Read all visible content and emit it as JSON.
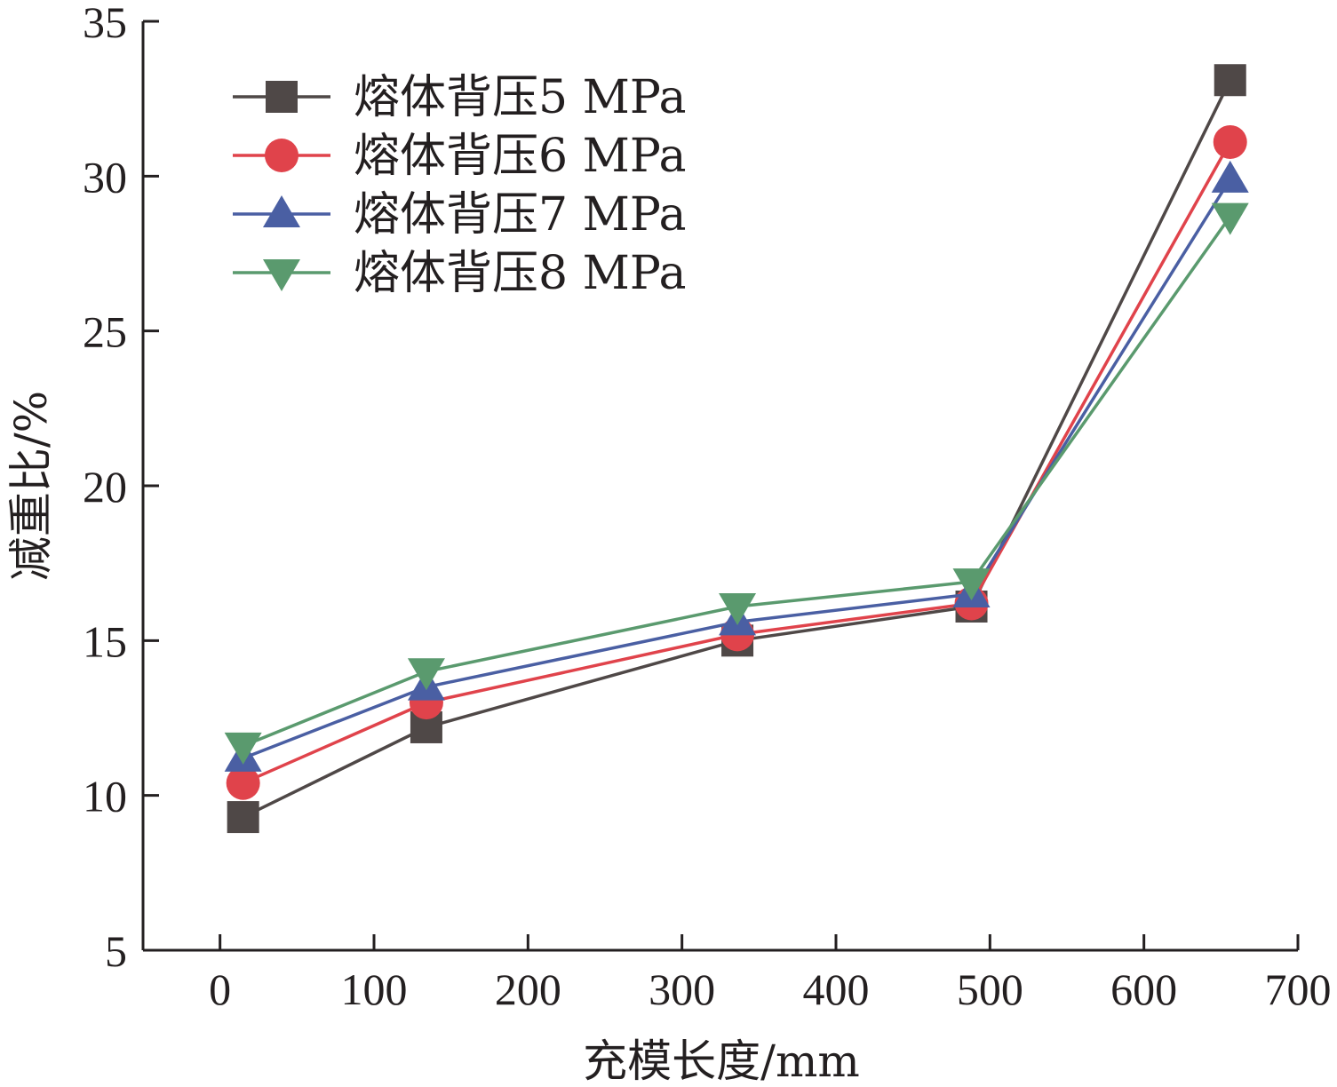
{
  "chart_data": {
    "type": "line",
    "title": "",
    "xlabel": "充模长度/mm",
    "ylabel": "减重比/%",
    "xlim": [
      -50,
      700
    ],
    "ylim": [
      5,
      35
    ],
    "xticks": [
      0,
      100,
      200,
      300,
      400,
      500,
      600,
      700
    ],
    "yticks": [
      5,
      10,
      15,
      20,
      25,
      30,
      35
    ],
    "grid": false,
    "legend_position": "top-left",
    "x": [
      15,
      134,
      336,
      488,
      656
    ],
    "series": [
      {
        "name": "熔体背压5 MPa",
        "marker": "square",
        "color": "#4f4847",
        "values": [
          9.3,
          12.2,
          15.0,
          16.1,
          33.1
        ]
      },
      {
        "name": "熔体背压6 MPa",
        "marker": "circle",
        "color": "#e0434b",
        "values": [
          10.4,
          13.0,
          15.2,
          16.2,
          31.1
        ]
      },
      {
        "name": "熔体背压7 MPa",
        "marker": "triangle-up",
        "color": "#4a5fa3",
        "values": [
          11.2,
          13.5,
          15.6,
          16.5,
          29.9
        ]
      },
      {
        "name": "熔体背压8 MPa",
        "marker": "triangle-down",
        "color": "#5a9a6e",
        "values": [
          11.6,
          14.0,
          16.1,
          16.9,
          28.7
        ]
      }
    ]
  }
}
